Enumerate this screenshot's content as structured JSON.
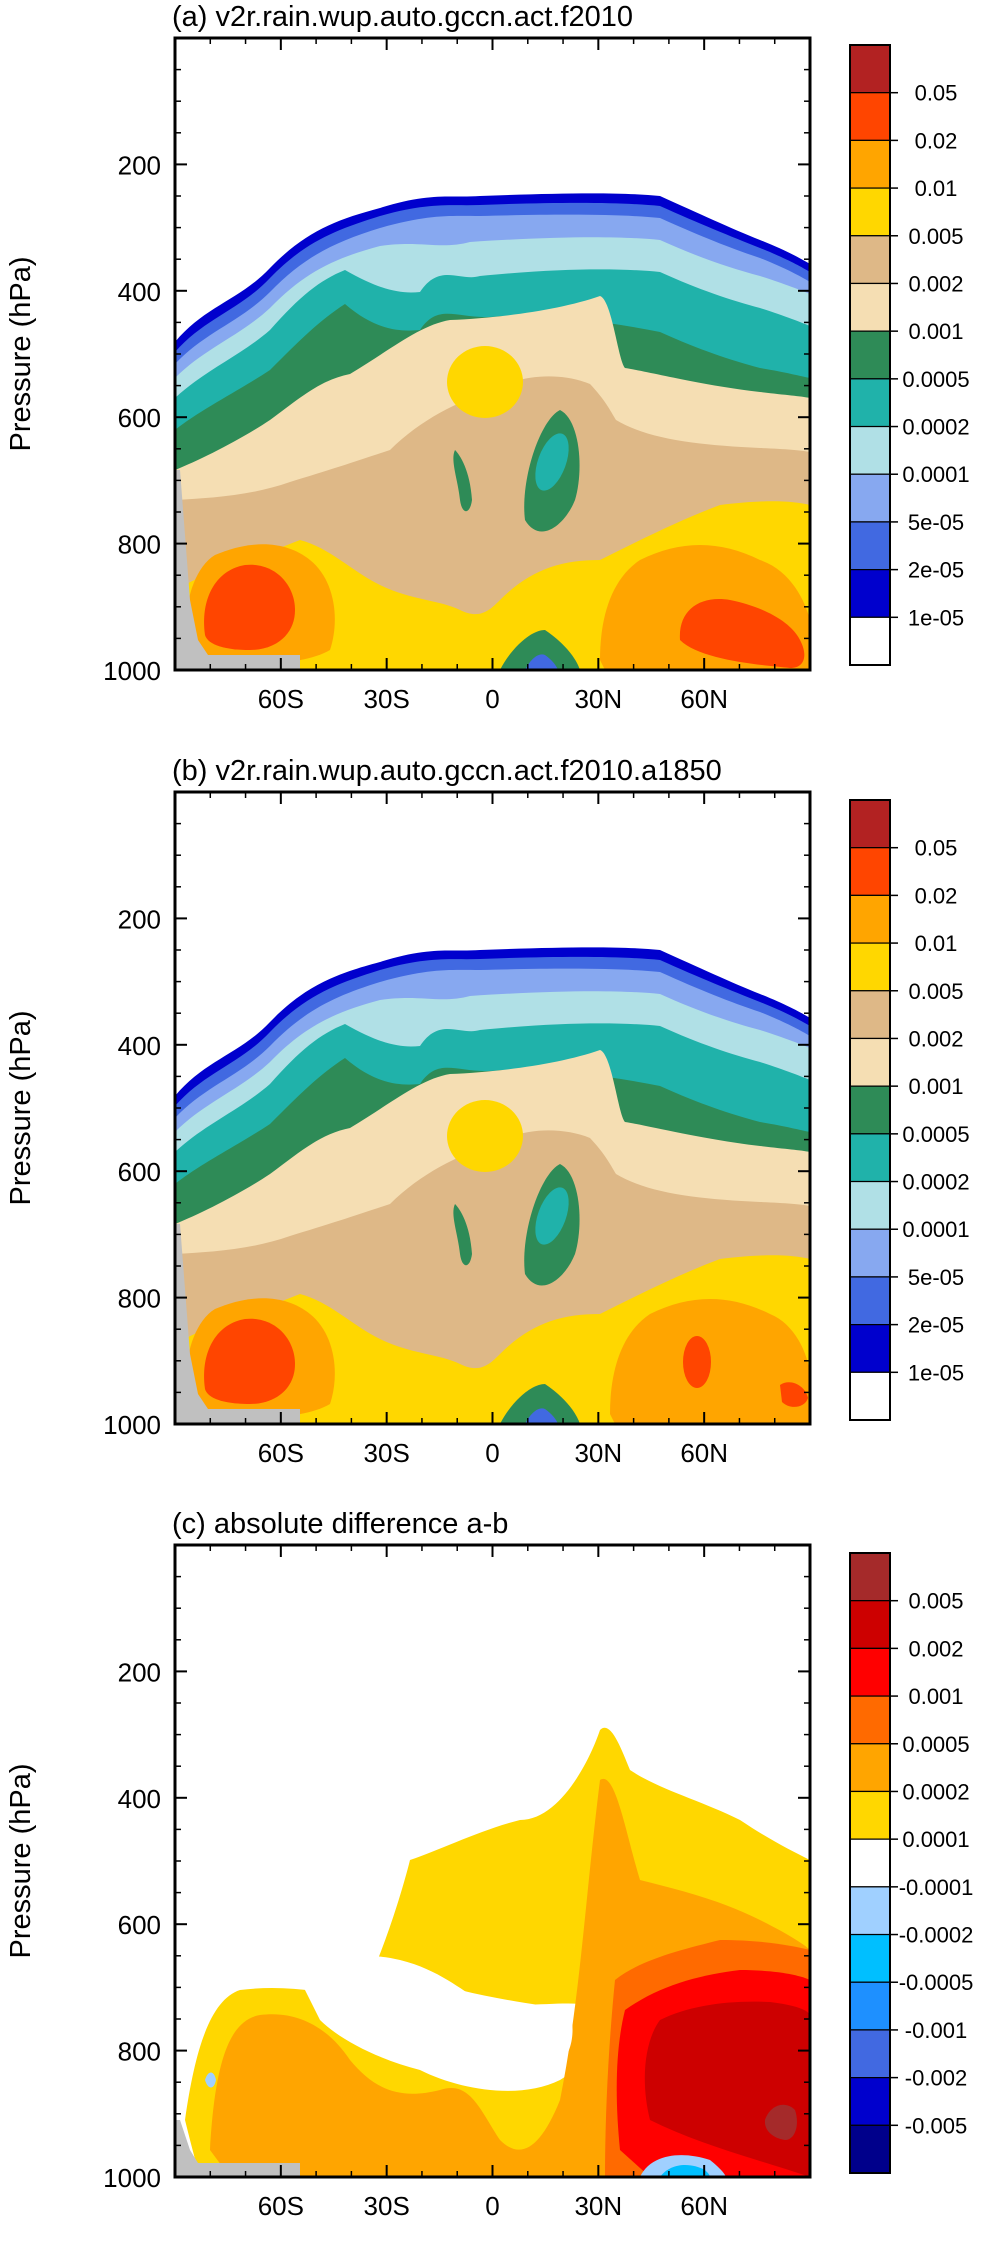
{
  "chart_data": [
    {
      "type": "contour",
      "title": "(a) v2r.rain.wup.auto.gccn.act.f2010",
      "xlabel": "",
      "ylabel": "Pressure (hPa)",
      "xlim": [
        -90,
        90
      ],
      "ylim": [
        1000,
        0
      ],
      "x_ticks": [
        -60,
        -30,
        0,
        30,
        60
      ],
      "x_tick_labels": [
        "60S",
        "30S",
        "0",
        "30N",
        "60N"
      ],
      "y_ticks": [
        200,
        400,
        600,
        800,
        1000
      ],
      "y_tick_labels": [
        "200",
        "400",
        "600",
        "800",
        "1000"
      ],
      "colorbar_labels": [
        "0.05",
        "0.02",
        "0.01",
        "0.005",
        "0.002",
        "0.001",
        "0.0005",
        "0.0002",
        "0.0001",
        "5e-05",
        "2e-05",
        "1e-05"
      ],
      "colorbar_colors": [
        "#b22222",
        "#ff4500",
        "#ffa500",
        "#ffd700",
        "#deb887",
        "#f5deb3",
        "#2e8b57",
        "#20b2aa",
        "#b0e0e6",
        "#87a8f0",
        "#4169e1",
        "#0000cd",
        "#ffffff"
      ],
      "cloud_top_hPa": {
        "lat": [
          -90,
          -80,
          -70,
          -60,
          -50,
          -45,
          -40,
          -35,
          -30,
          -25,
          -20,
          -10,
          0,
          10,
          20,
          30,
          40,
          50,
          60,
          70,
          75,
          80,
          90
        ],
        "top": [
          480,
          420,
          370,
          330,
          305,
          295,
          285,
          278,
          275,
          278,
          280,
          278,
          275,
          275,
          272,
          270,
          275,
          295,
          310,
          335,
          340,
          345,
          380
        ]
      },
      "missing_region": {
        "lat_end": -60,
        "p_start": 975
      },
      "features": [
        {
          "type": "band",
          "note": "tropical 30N tower",
          "color": "#2e8b57"
        }
      ]
    },
    {
      "type": "contour",
      "title": "(b) v2r.rain.wup.auto.gccn.act.f2010.a1850",
      "xlabel": "",
      "ylabel": "Pressure (hPa)",
      "xlim": [
        -90,
        90
      ],
      "ylim": [
        1000,
        0
      ],
      "x_ticks": [
        -60,
        -30,
        0,
        30,
        60
      ],
      "x_tick_labels": [
        "60S",
        "30S",
        "0",
        "30N",
        "60N"
      ],
      "y_ticks": [
        200,
        400,
        600,
        800,
        1000
      ],
      "y_tick_labels": [
        "200",
        "400",
        "600",
        "800",
        "1000"
      ],
      "colorbar_labels": [
        "0.05",
        "0.02",
        "0.01",
        "0.005",
        "0.002",
        "0.001",
        "0.0005",
        "0.0002",
        "0.0001",
        "5e-05",
        "2e-05",
        "1e-05"
      ],
      "colorbar_colors": [
        "#b22222",
        "#ff4500",
        "#ffa500",
        "#ffd700",
        "#deb887",
        "#f5deb3",
        "#2e8b57",
        "#20b2aa",
        "#b0e0e6",
        "#87a8f0",
        "#4169e1",
        "#0000cd",
        "#ffffff"
      ]
    },
    {
      "type": "contour",
      "title": "(c) absolute difference a-b",
      "xlabel": "",
      "ylabel": "Pressure (hPa)",
      "xlim": [
        -90,
        90
      ],
      "ylim": [
        1000,
        0
      ],
      "x_ticks": [
        -60,
        -30,
        0,
        30,
        60
      ],
      "x_tick_labels": [
        "60S",
        "30S",
        "0",
        "30N",
        "60N"
      ],
      "y_ticks": [
        200,
        400,
        600,
        800,
        1000
      ],
      "y_tick_labels": [
        "200",
        "400",
        "600",
        "800",
        "1000"
      ],
      "colorbar_labels": [
        "0.005",
        "0.002",
        "0.001",
        "0.0005",
        "0.0002",
        "0.0001",
        "-0.0001",
        "-0.0002",
        "-0.0005",
        "-0.001",
        "-0.002",
        "-0.005"
      ],
      "colorbar_colors": [
        "#a52a2a",
        "#cd0000",
        "#ff0000",
        "#ff6a00",
        "#ffa500",
        "#ffd700",
        "#ffffff",
        "#a0d0ff",
        "#00bfff",
        "#1e90ff",
        "#4169e1",
        "#0000cd",
        "#00008b"
      ]
    }
  ]
}
